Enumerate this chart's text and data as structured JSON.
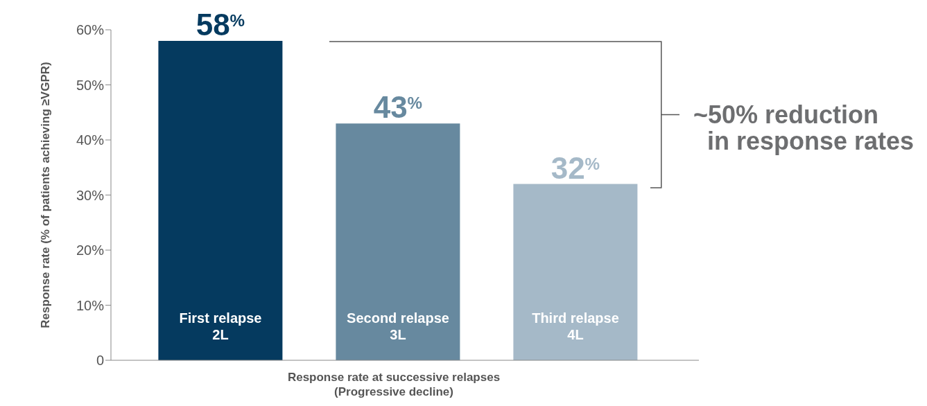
{
  "chart_data": {
    "type": "bar",
    "categories": [
      "First relapse\n2L",
      "Second relapse\n3L",
      "Third relapse\n4L"
    ],
    "values": [
      58,
      43,
      32
    ],
    "colors": [
      "#053a5f",
      "#67899f",
      "#a5b9c8"
    ],
    "value_labels": [
      "58$^{%}$",
      "43$^{%}$",
      "32$^{%}$"
    ],
    "xlabel": "Response rate at successive relapses\n(Progressive decline)",
    "ylabel": "Response rate (% of patients achieving ≥VGPR)",
    "ylim": [
      0,
      60
    ],
    "yticks": [
      0,
      {
        "value": 10,
        "label": "10%"
      },
      {
        "value": 20,
        "label": "20%"
      },
      {
        "value": 30,
        "label": "30%"
      },
      {
        "value": 40,
        "label": "40%"
      },
      {
        "value": 50,
        "label": "50%"
      },
      {
        "value": 60,
        "label": "60%"
      }
    ],
    "annotations": [
      "~50% reduction\n  in response rates"
    ]
  }
}
